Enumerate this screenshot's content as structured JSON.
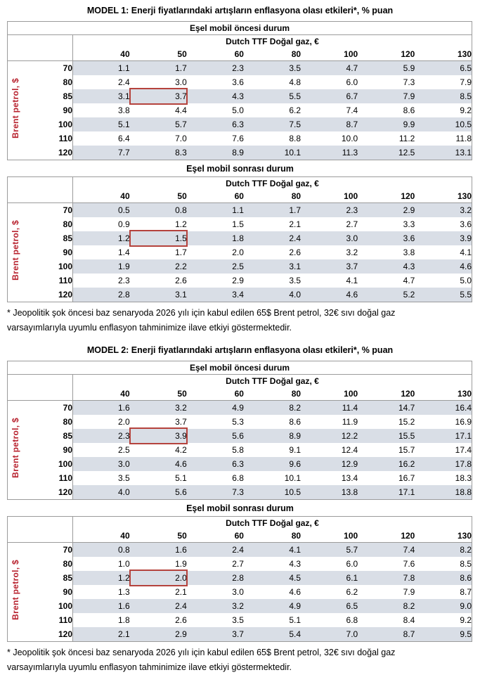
{
  "colors": {
    "accent_red": "#b8232f",
    "highlight_box_red": "#b5433d",
    "row_shade": "#d9dee6",
    "table_border": "#9b9b9b",
    "background": "#ffffff"
  },
  "axis": {
    "gas_label": "Dutch TTF Doğal gaz, €",
    "oil_label": "Brent petrol, $",
    "col_headers": [
      "40",
      "50",
      "60",
      "80",
      "100",
      "120",
      "130"
    ],
    "row_headers": [
      "70",
      "80",
      "85",
      "90",
      "100",
      "110",
      "120"
    ]
  },
  "models": [
    {
      "title": "MODEL 1: Enerji fiyatlarındaki artışların enflasyona olası etkileri*, % puan",
      "tables": [
        {
          "caption": "Eşel mobil öncesi durum",
          "caption_inside": true,
          "highlight": {
            "row": 2,
            "col": 1,
            "row_header": "85",
            "col_header": "50",
            "value": "3.7"
          },
          "rows": [
            [
              "1.1",
              "1.7",
              "2.3",
              "3.5",
              "4.7",
              "5.9",
              "6.5"
            ],
            [
              "2.4",
              "3.0",
              "3.6",
              "4.8",
              "6.0",
              "7.3",
              "7.9"
            ],
            [
              "3.1",
              "3.7",
              "4.3",
              "5.5",
              "6.7",
              "7.9",
              "8.5"
            ],
            [
              "3.8",
              "4.4",
              "5.0",
              "6.2",
              "7.4",
              "8.6",
              "9.2"
            ],
            [
              "5.1",
              "5.7",
              "6.3",
              "7.5",
              "8.7",
              "9.9",
              "10.5"
            ],
            [
              "6.4",
              "7.0",
              "7.6",
              "8.8",
              "10.0",
              "11.2",
              "11.8"
            ],
            [
              "7.7",
              "8.3",
              "8.9",
              "10.1",
              "11.3",
              "12.5",
              "13.1"
            ]
          ]
        },
        {
          "caption": "Eşel mobil sonrası durum",
          "caption_inside": false,
          "highlight": {
            "row": 2,
            "col": 1,
            "row_header": "85",
            "col_header": "50",
            "value": "1.5"
          },
          "rows": [
            [
              "0.5",
              "0.8",
              "1.1",
              "1.7",
              "2.3",
              "2.9",
              "3.2"
            ],
            [
              "0.9",
              "1.2",
              "1.5",
              "2.1",
              "2.7",
              "3.3",
              "3.6"
            ],
            [
              "1.2",
              "1.5",
              "1.8",
              "2.4",
              "3.0",
              "3.6",
              "3.9"
            ],
            [
              "1.4",
              "1.7",
              "2.0",
              "2.6",
              "3.2",
              "3.8",
              "4.1"
            ],
            [
              "1.9",
              "2.2",
              "2.5",
              "3.1",
              "3.7",
              "4.3",
              "4.6"
            ],
            [
              "2.3",
              "2.6",
              "2.9",
              "3.5",
              "4.1",
              "4.7",
              "5.0"
            ],
            [
              "2.8",
              "3.1",
              "3.4",
              "4.0",
              "4.6",
              "5.2",
              "5.5"
            ]
          ]
        }
      ],
      "footnote_lines": [
        "* Jeopolitik şok öncesi baz senaryoda 2026 yılı için kabul edilen 65$ Brent petrol, 32€ sıvı doğal gaz",
        "varsayımlarıyla uyumlu enflasyon tahminimize ilave etkiyi göstermektedir."
      ]
    },
    {
      "title": "MODEL 2: Enerji fiyatlarındaki artışların enflasyona olası etkileri*, % puan",
      "tables": [
        {
          "caption": "Eşel mobil öncesi durum",
          "caption_inside": true,
          "highlight": {
            "row": 2,
            "col": 1,
            "row_header": "85",
            "col_header": "50",
            "value": "3.9"
          },
          "rows": [
            [
              "1.6",
              "3.2",
              "4.9",
              "8.2",
              "11.4",
              "14.7",
              "16.4"
            ],
            [
              "2.0",
              "3.7",
              "5.3",
              "8.6",
              "11.9",
              "15.2",
              "16.9"
            ],
            [
              "2.3",
              "3.9",
              "5.6",
              "8.9",
              "12.2",
              "15.5",
              "17.1"
            ],
            [
              "2.5",
              "4.2",
              "5.8",
              "9.1",
              "12.4",
              "15.7",
              "17.4"
            ],
            [
              "3.0",
              "4.6",
              "6.3",
              "9.6",
              "12.9",
              "16.2",
              "17.8"
            ],
            [
              "3.5",
              "5.1",
              "6.8",
              "10.1",
              "13.4",
              "16.7",
              "18.3"
            ],
            [
              "4.0",
              "5.6",
              "7.3",
              "10.5",
              "13.8",
              "17.1",
              "18.8"
            ]
          ]
        },
        {
          "caption": "Eşel mobil sonrası durum",
          "caption_inside": false,
          "highlight": {
            "row": 2,
            "col": 1,
            "row_header": "85",
            "col_header": "50",
            "value": "2.0"
          },
          "rows": [
            [
              "0.8",
              "1.6",
              "2.4",
              "4.1",
              "5.7",
              "7.4",
              "8.2"
            ],
            [
              "1.0",
              "1.9",
              "2.7",
              "4.3",
              "6.0",
              "7.6",
              "8.5"
            ],
            [
              "1.2",
              "2.0",
              "2.8",
              "4.5",
              "6.1",
              "7.8",
              "8.6"
            ],
            [
              "1.3",
              "2.1",
              "3.0",
              "4.6",
              "6.2",
              "7.9",
              "8.7"
            ],
            [
              "1.6",
              "2.4",
              "3.2",
              "4.9",
              "6.5",
              "8.2",
              "9.0"
            ],
            [
              "1.8",
              "2.6",
              "3.5",
              "5.1",
              "6.8",
              "8.4",
              "9.2"
            ],
            [
              "2.1",
              "2.9",
              "3.7",
              "5.4",
              "7.0",
              "8.7",
              "9.5"
            ]
          ]
        }
      ],
      "footnote_lines": [
        "* Jeopolitik şok öncesi baz senaryoda 2026 yılı için kabul edilen 65$ Brent petrol, 32€ sıvı doğal gaz",
        "varsayımlarıyla uyumlu enflasyon tahminimize ilave etkiyi göstermektedir."
      ]
    }
  ]
}
